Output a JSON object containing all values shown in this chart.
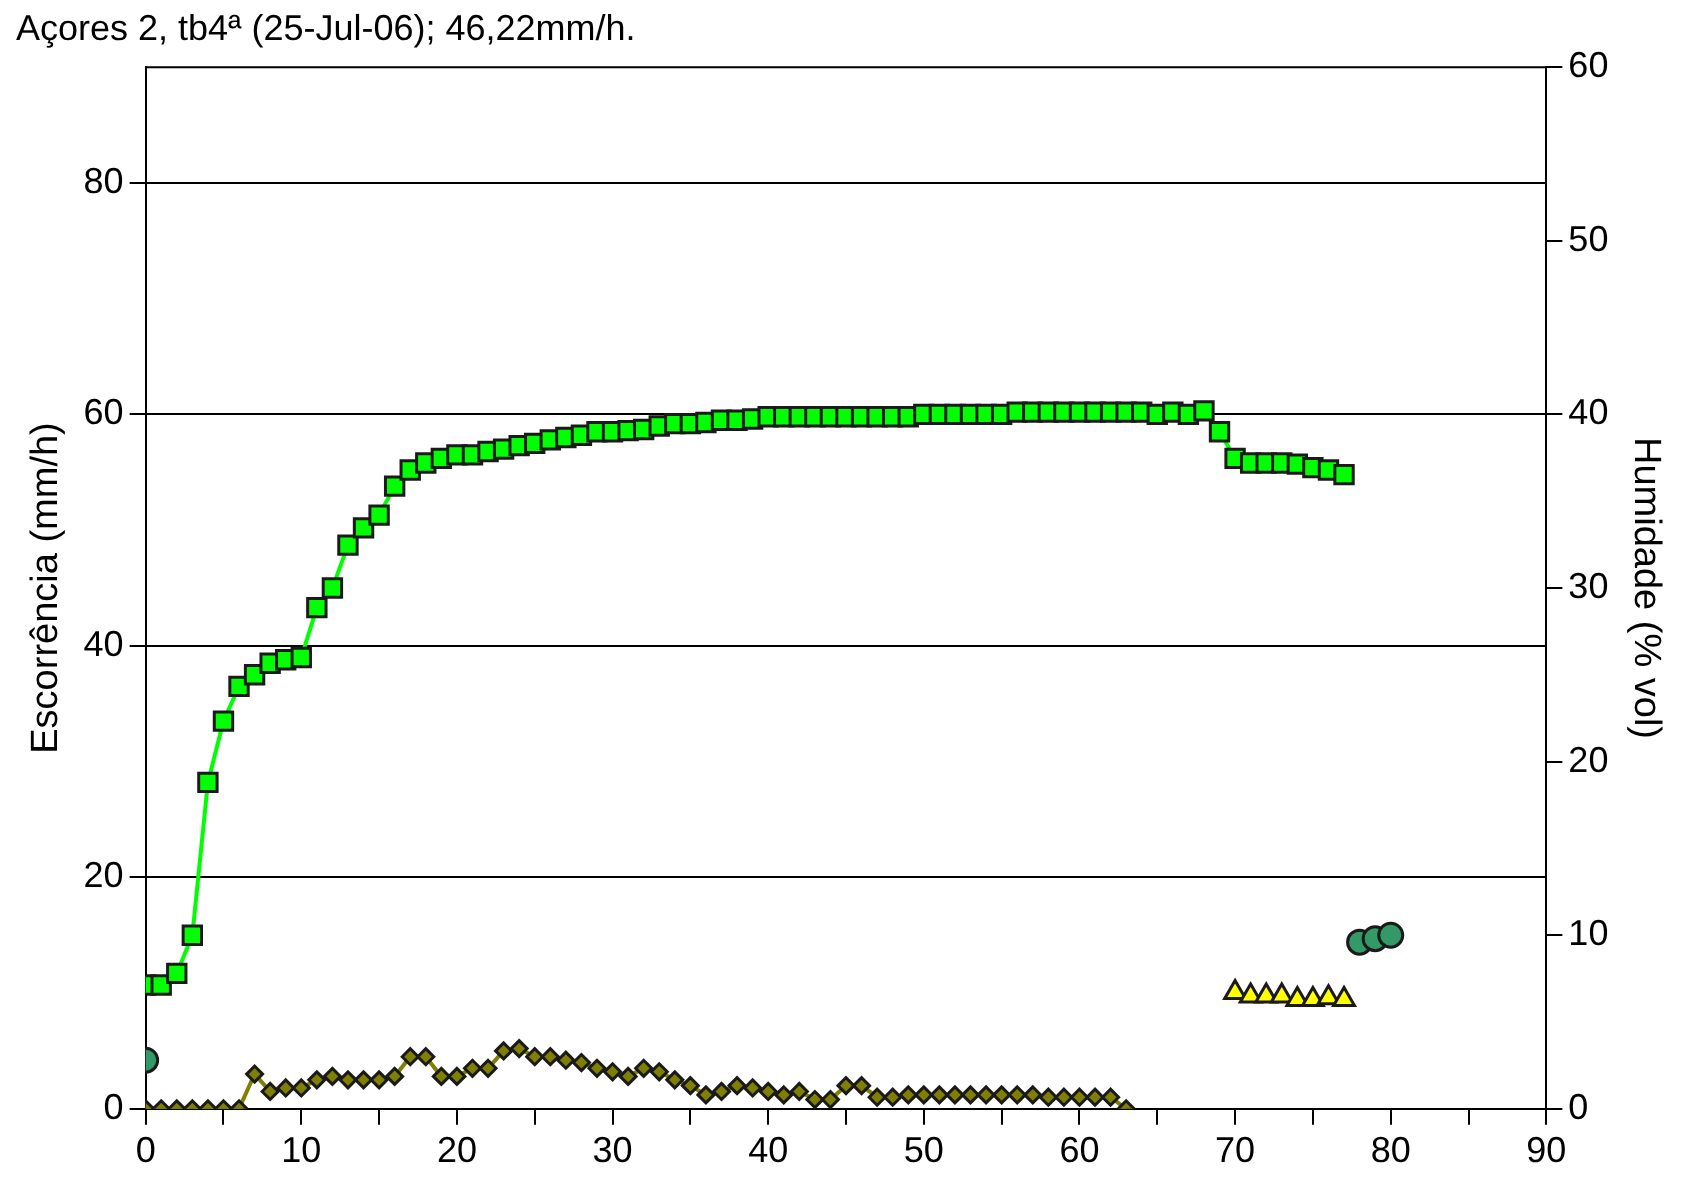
{
  "chart_data": {
    "type": "line",
    "title": "Açores 2, tb4ª (25-Jul-06); 46,22mm/h.",
    "ylabel": "Escorrência (mm/h)",
    "y2label": "Humidade (% vol)",
    "xlim": [
      0,
      90
    ],
    "xticks": [
      0,
      {
        "value": 5,
        "label": null
      },
      10,
      {
        "value": 15,
        "label": null
      },
      20,
      {
        "value": 25,
        "label": null
      },
      30,
      {
        "value": 35,
        "label": null
      },
      40,
      {
        "value": 45,
        "label": null
      },
      50,
      {
        "value": 55,
        "label": null
      },
      60,
      {
        "value": 65,
        "label": null
      },
      70,
      {
        "value": 75,
        "label": null
      },
      80,
      {
        "value": 85,
        "label": null
      },
      90
    ],
    "ylim": [
      0,
      90
    ],
    "yticks": [
      0,
      20,
      40,
      60,
      80
    ],
    "y2lim": [
      0,
      60
    ],
    "y2ticks": [
      0,
      10,
      20,
      30,
      40,
      50,
      60
    ],
    "grid": "y",
    "legend": false,
    "series": [
      {
        "marker": "square",
        "color": "#00ff00",
        "x": [
          0,
          1,
          2,
          3,
          4,
          5,
          6,
          7,
          8,
          9,
          10,
          11,
          12,
          13,
          14,
          15,
          16,
          17,
          18,
          19,
          20,
          21,
          22,
          23,
          24,
          25,
          26,
          27,
          28,
          29,
          30,
          31,
          32,
          33,
          34,
          35,
          36,
          37,
          38,
          39,
          40,
          41,
          42,
          43,
          44,
          45,
          46,
          47,
          48,
          49,
          50,
          51,
          52,
          53,
          54,
          55,
          56,
          57,
          58,
          59,
          60,
          61,
          62,
          63,
          64,
          65,
          66,
          67,
          68,
          69,
          70,
          71,
          72,
          73,
          74,
          75,
          76,
          77
        ],
        "values": [
          10.7,
          10.7,
          11.7,
          15,
          28.2,
          33.5,
          36.5,
          37.5,
          38.5,
          38.8,
          39,
          43.3,
          45,
          48.7,
          50.2,
          51.3,
          53.8,
          55.2,
          55.8,
          56.2,
          56.5,
          56.5,
          56.8,
          57,
          57.3,
          57.5,
          57.8,
          58,
          58.2,
          58.5,
          58.5,
          58.6,
          58.7,
          59,
          59.2,
          59.2,
          59.3,
          59.5,
          59.5,
          59.6,
          59.8,
          59.8,
          59.8,
          59.8,
          59.8,
          59.8,
          59.8,
          59.8,
          59.8,
          59.8,
          60,
          60,
          60,
          60,
          60,
          60,
          60.2,
          60.2,
          60.2,
          60.2,
          60.2,
          60.2,
          60.2,
          60.2,
          60.2,
          60,
          60.2,
          60,
          60.3,
          58.5,
          56.2,
          55.8,
          55.8,
          55.8,
          55.7,
          55.4,
          55.2,
          54.8
        ]
      },
      {
        "marker": "diamond",
        "color": "#808000",
        "x": [
          0,
          1,
          2,
          3,
          4,
          5,
          6,
          7,
          8,
          9,
          10,
          11,
          12,
          13,
          14,
          15,
          16,
          17,
          18,
          19,
          20,
          21,
          22,
          23,
          24,
          25,
          26,
          27,
          28,
          29,
          30,
          31,
          32,
          33,
          34,
          35,
          36,
          37,
          38,
          39,
          40,
          41,
          42,
          43,
          44,
          45,
          46,
          47,
          48,
          49,
          50,
          51,
          52,
          53,
          54,
          55,
          56,
          57,
          58,
          59,
          60,
          61,
          62,
          63
        ],
        "values": [
          0,
          0,
          0,
          0,
          0,
          0,
          0,
          3,
          1.5,
          1.8,
          1.8,
          2.5,
          2.8,
          2.5,
          2.5,
          2.5,
          2.8,
          4.5,
          4.5,
          2.8,
          2.8,
          3.5,
          3.5,
          5,
          5.2,
          4.5,
          4.5,
          4.2,
          4,
          3.5,
          3.2,
          2.8,
          3.5,
          3.2,
          2.5,
          2,
          1.2,
          1.5,
          2,
          1.8,
          1.5,
          1.2,
          1.5,
          0.8,
          0.8,
          2,
          2,
          1,
          1,
          1.2,
          1.2,
          1.2,
          1.2,
          1.2,
          1.2,
          1.2,
          1.2,
          1.2,
          1,
          1,
          1,
          1,
          1,
          0
        ]
      },
      {
        "type": "scatter",
        "marker": "triangle",
        "color": "#ffff00",
        "axis": "y2",
        "x": [
          70,
          71,
          72,
          73,
          74,
          75,
          76,
          77
        ],
        "values": [
          6.7,
          6.5,
          6.5,
          6.5,
          6.3,
          6.3,
          6.4,
          6.3
        ]
      },
      {
        "type": "scatter",
        "marker": "circle",
        "color": "#339966",
        "axis": "y2",
        "x": [
          0,
          78,
          79,
          80
        ],
        "values": [
          2.8,
          9.6,
          9.8,
          10
        ]
      }
    ]
  }
}
